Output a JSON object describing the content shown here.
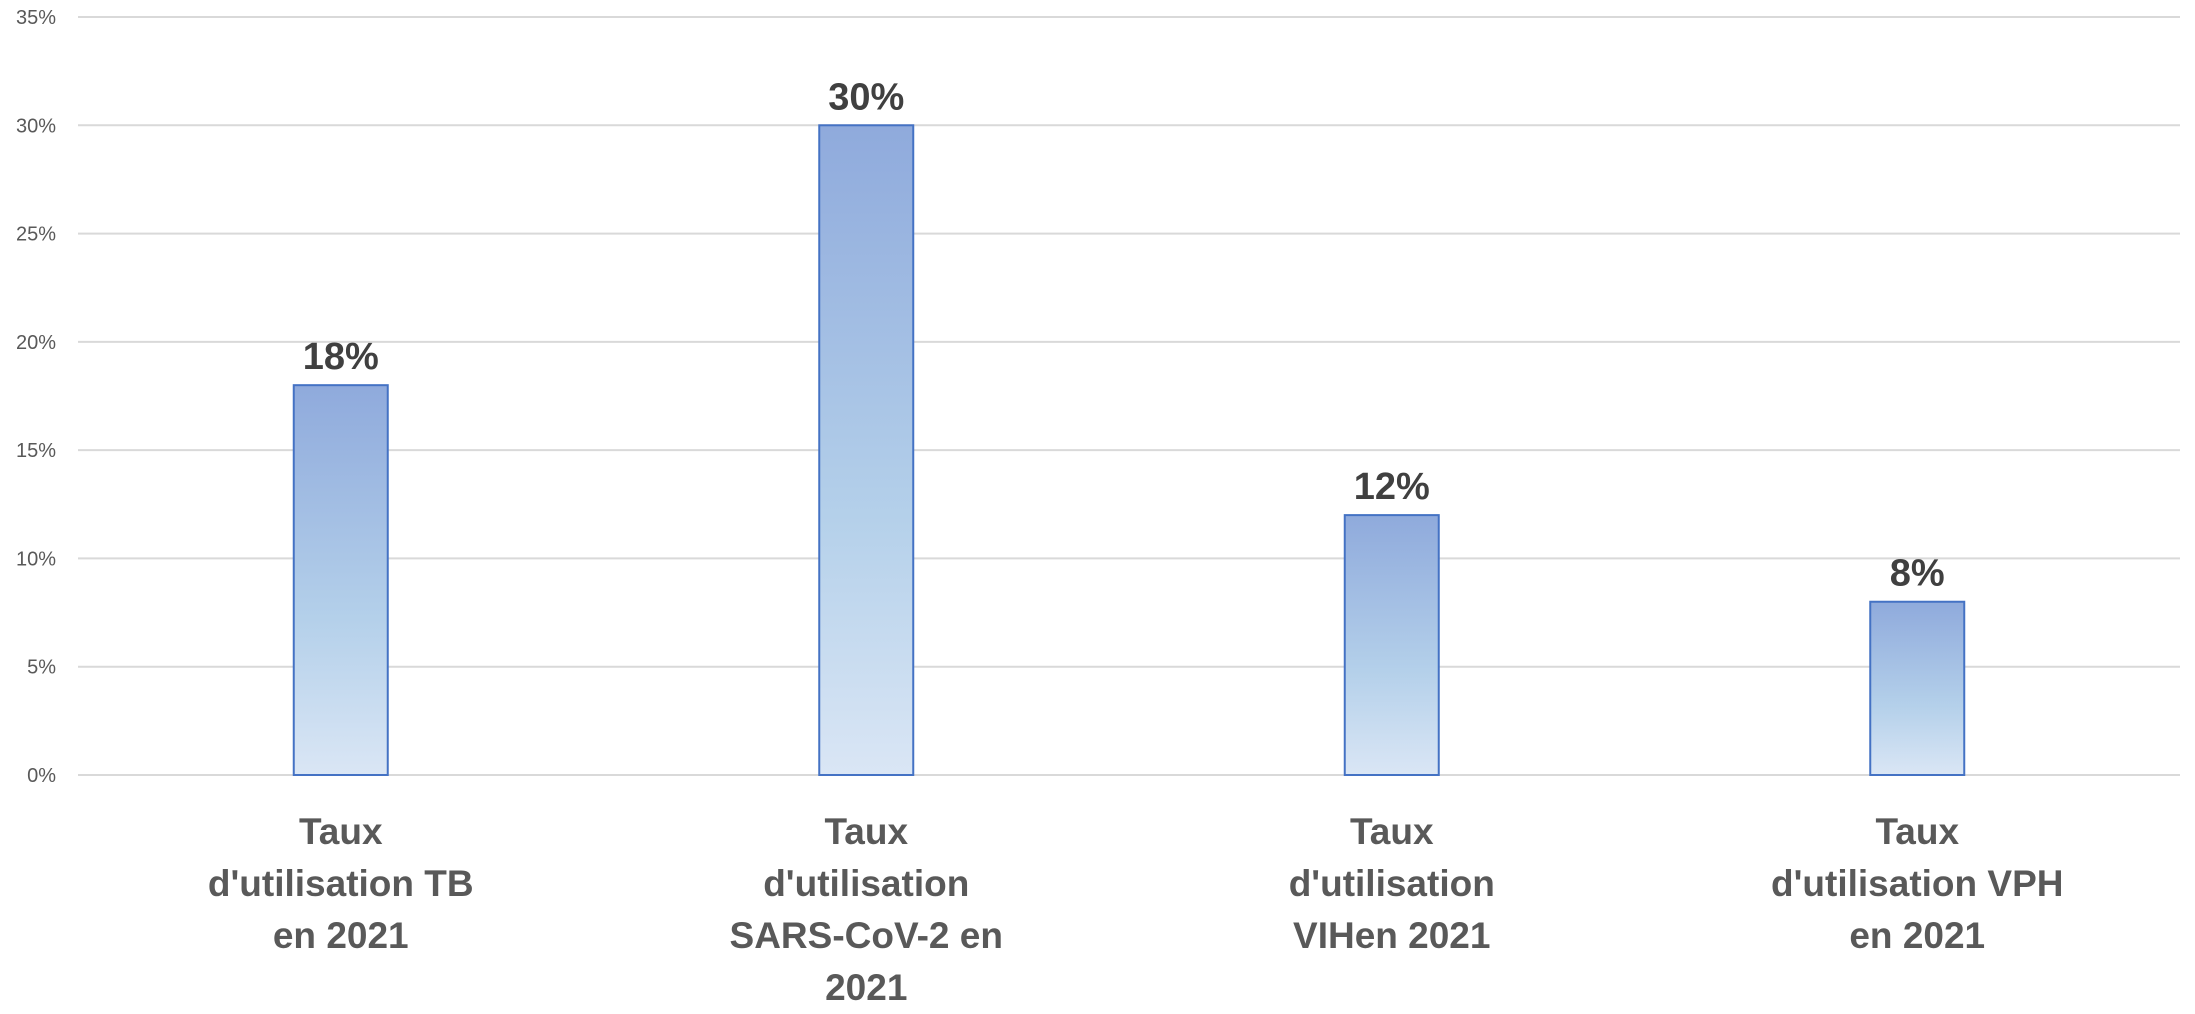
{
  "chart_data": {
    "type": "bar",
    "categories": [
      "Taux\nd'utilisation TB\nen 2021",
      "Taux\nd'utilisation\nSARS-CoV-2 en\n2021",
      "Taux\nd'utilisation\nVIHen 2021",
      "Taux\nd'utilisation VPH\nen 2021"
    ],
    "values": [
      18,
      30,
      12,
      8
    ],
    "data_labels": [
      "18%",
      "30%",
      "12%",
      "8%"
    ],
    "yticks": [
      0,
      5,
      10,
      15,
      20,
      25,
      30,
      35
    ],
    "ytick_labels": [
      "0%",
      "5%",
      "10%",
      "15%",
      "20%",
      "25%",
      "30%",
      "35%"
    ],
    "ylim": [
      0,
      35
    ],
    "grid": true,
    "legend": "none",
    "colors": {
      "bar_top": "#8faadc",
      "bar_bottom": "#dae6f5",
      "bar_border": "#4472c4",
      "grid": "#d9d9d9",
      "tick_text": "#595959",
      "label_text": "#404040"
    }
  }
}
